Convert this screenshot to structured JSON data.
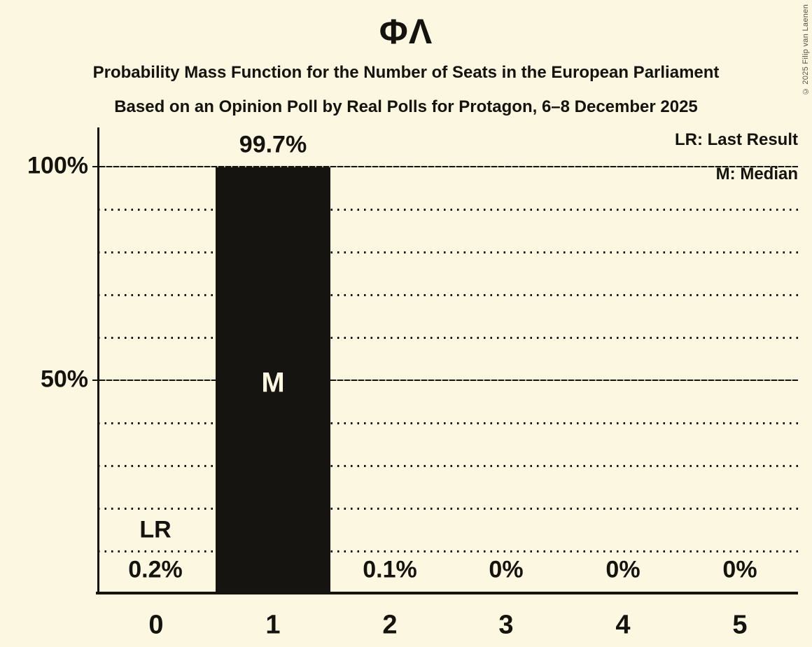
{
  "header": {
    "title": "ΦΛ",
    "subtitle1": "Probability Mass Function for the Number of Seats in the European Parliament",
    "subtitle2": "Based on an Opinion Poll by Real Polls for Protagon, 6–8 December 2025",
    "copyright": "© 2025 Filip van Laenen"
  },
  "legend": {
    "lr": "LR: Last Result",
    "m": "M: Median"
  },
  "axes": {
    "y_ticks": [
      "100%",
      "50%"
    ],
    "x_ticks": [
      "0",
      "1",
      "2",
      "3",
      "4",
      "5"
    ]
  },
  "annotations": {
    "last_result": "LR",
    "median": "M"
  },
  "chart_data": {
    "type": "bar",
    "title": "ΦΛ",
    "subtitle": "Probability Mass Function for the Number of Seats in the European Parliament",
    "source_line": "Based on an Opinion Poll by Real Polls for Protagon, 6–8 December 2025",
    "categories": [
      "0",
      "1",
      "2",
      "3",
      "4",
      "5"
    ],
    "values": [
      0.2,
      99.7,
      0.1,
      0,
      0,
      0
    ],
    "value_labels": [
      "0.2%",
      "99.7%",
      "0.1%",
      "0%",
      "0%",
      "0%"
    ],
    "ylim": [
      0,
      100
    ],
    "y_gridline_step_pct": 10,
    "y_solid_lines_pct": [
      50,
      100
    ],
    "last_result_category": "0",
    "median_category": "1",
    "legend_entries": [
      "LR: Last Result",
      "M: Median"
    ],
    "legend_position": "top-right",
    "grid": true,
    "bar_color": "#161410",
    "background_color": "#FBF7E1",
    "text_color": "#15130e",
    "bar_label_color": "#FBF7E1"
  }
}
